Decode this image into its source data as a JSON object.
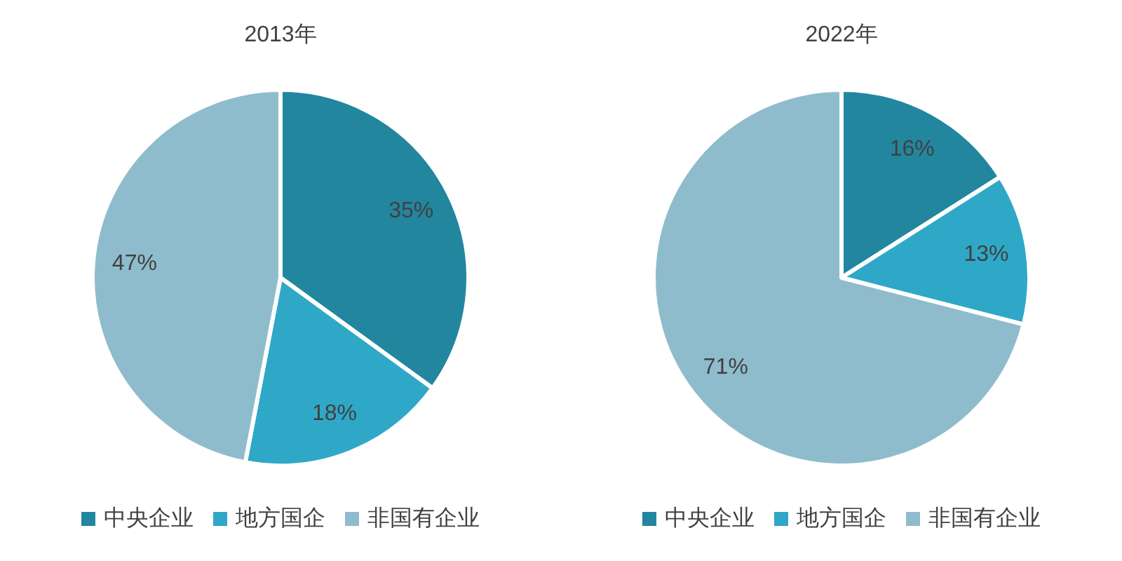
{
  "chart_data": [
    {
      "type": "pie",
      "title": "2013年",
      "categories": [
        "中央企业",
        "地方国企",
        "非国有企业"
      ],
      "values": [
        35,
        18,
        47
      ],
      "colors": [
        "#22869f",
        "#2fa8c8",
        "#8fbccd"
      ],
      "value_labels": [
        "35%",
        "18%",
        "47%"
      ],
      "legend": "bottom"
    },
    {
      "type": "pie",
      "title": "2022年",
      "categories": [
        "中央企业",
        "地方国企",
        "非国有企业"
      ],
      "values": [
        16,
        13,
        71
      ],
      "colors": [
        "#22869f",
        "#2fa8c8",
        "#8fbccd"
      ],
      "value_labels": [
        "16%",
        "13%",
        "71%"
      ],
      "legend": "bottom"
    }
  ]
}
